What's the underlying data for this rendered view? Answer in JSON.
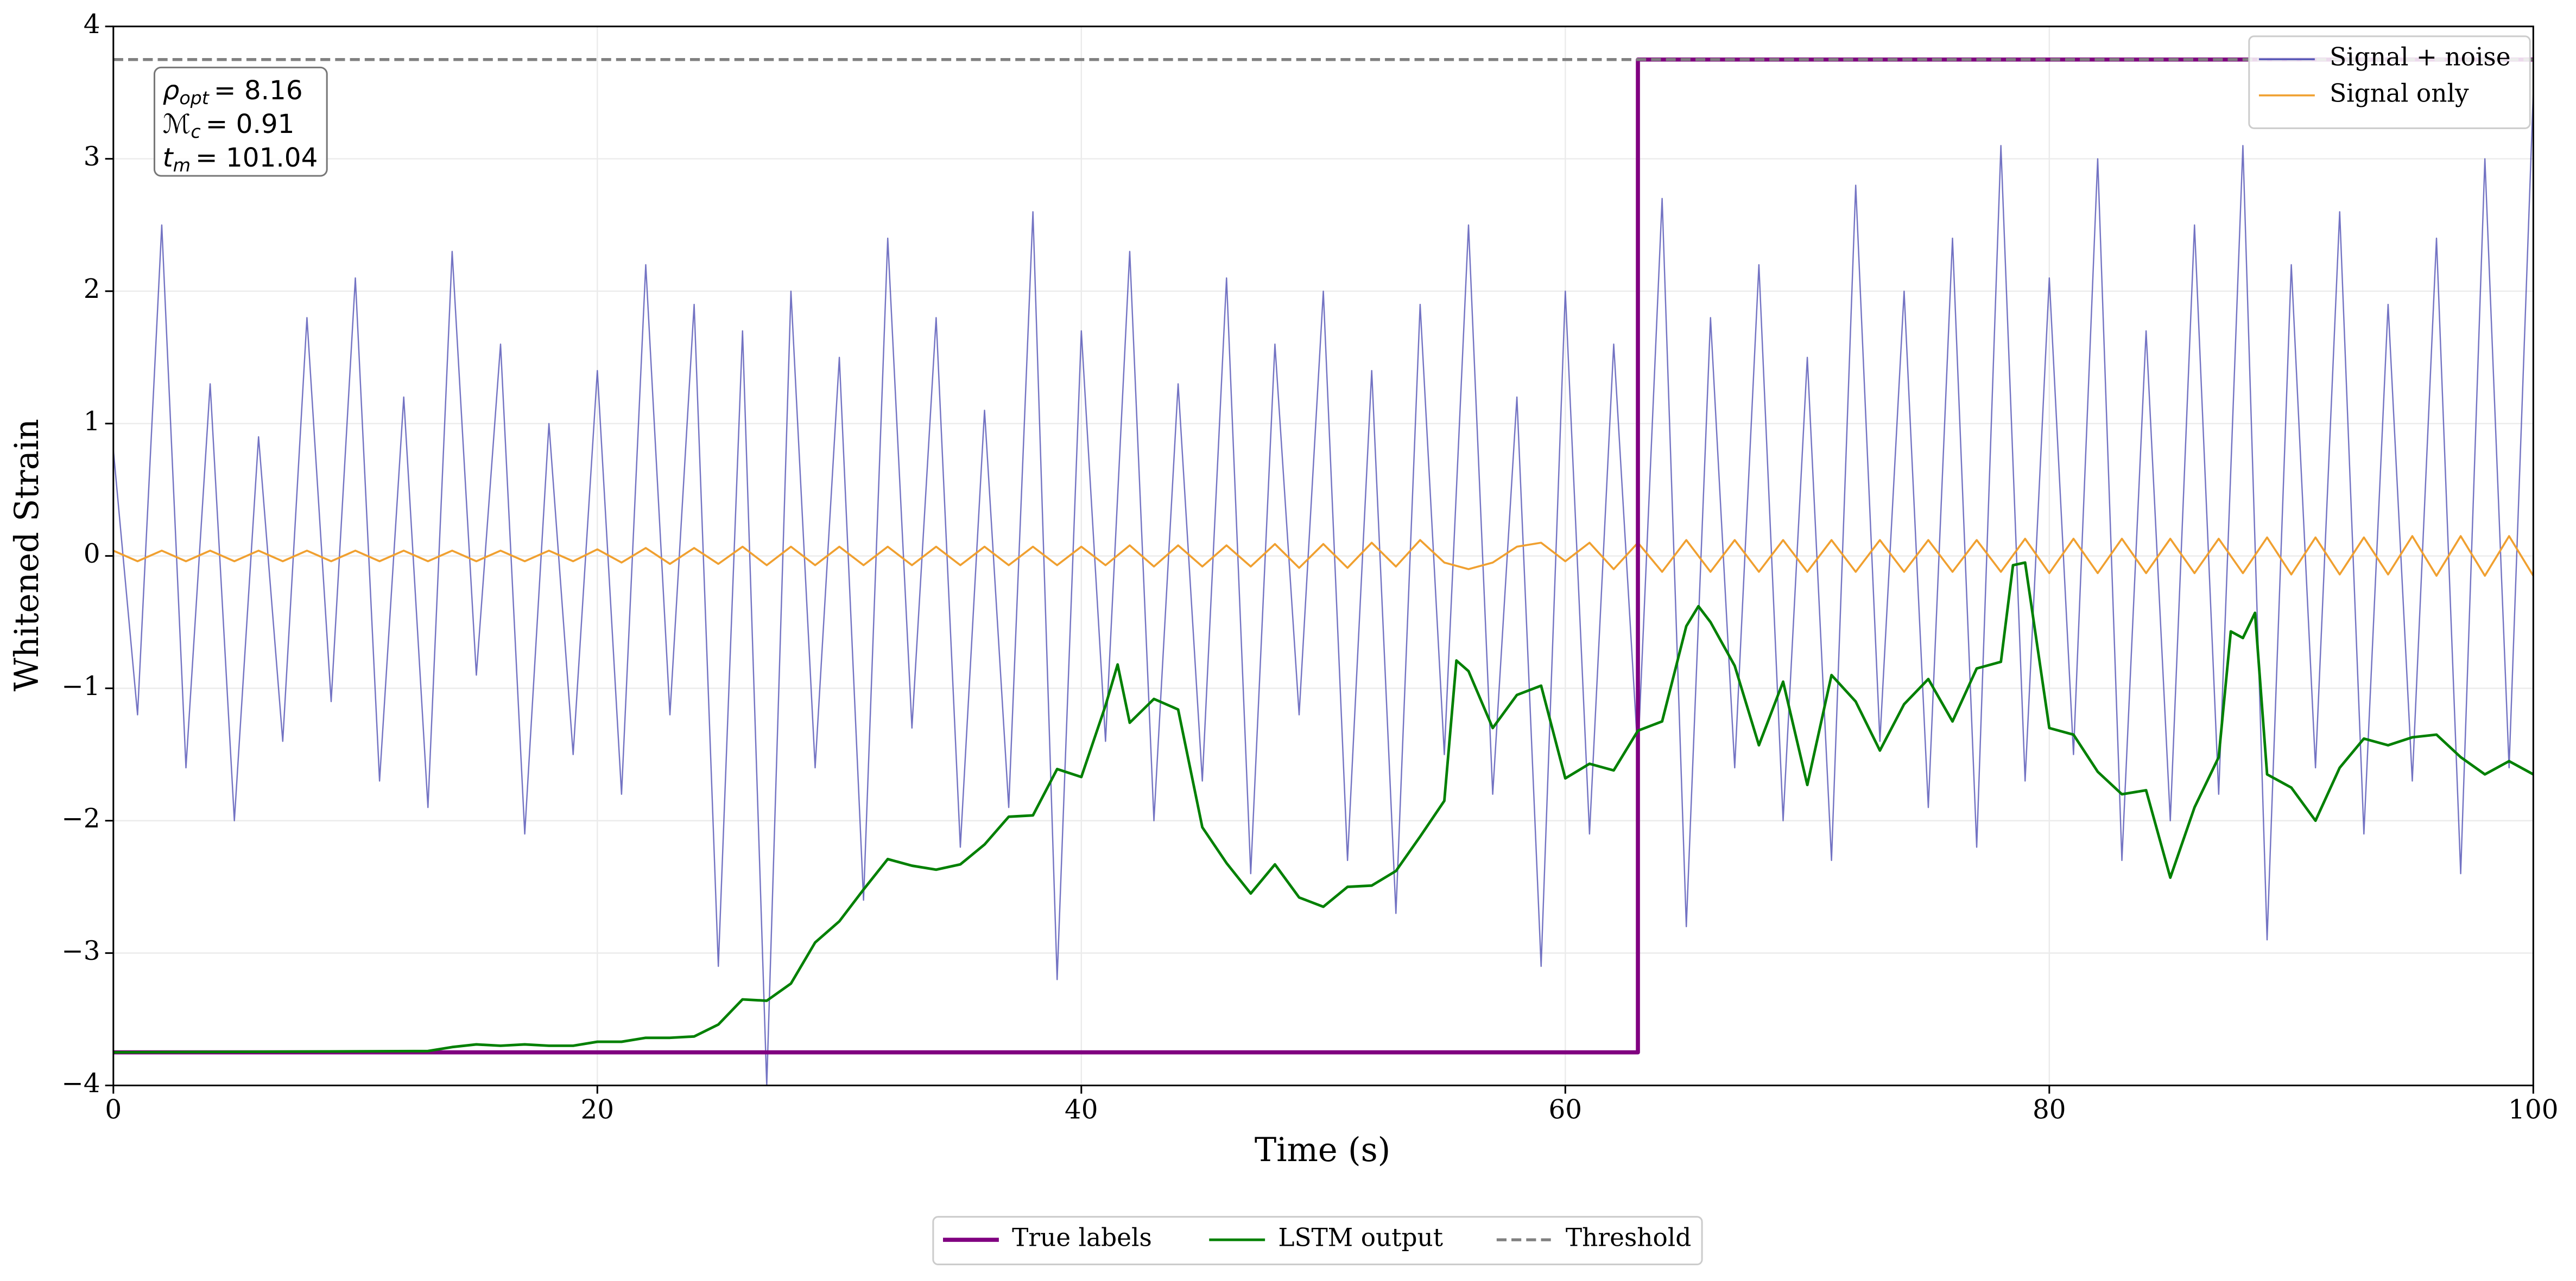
{
  "chart_data": {
    "type": "line",
    "xlabel": "Time (s)",
    "ylabel": "Whitened Strain",
    "xlim": [
      0,
      100
    ],
    "ylim": [
      -4,
      4
    ],
    "xticks": [
      0,
      20,
      40,
      60,
      80,
      100
    ],
    "yticks": [
      -4,
      -3,
      -2,
      -1,
      0,
      1,
      2,
      3,
      4
    ],
    "grid": true,
    "annotations": [
      {
        "symbol": "ρ",
        "sub": "opt",
        "text": "= 8.16"
      },
      {
        "symbol": "ℳ",
        "sub": "c",
        "text": "= 0.91"
      },
      {
        "symbol": "t",
        "sub": "m",
        "text": "= 101.04"
      }
    ],
    "x": [
      0,
      1,
      2,
      3,
      4,
      5,
      6,
      7,
      8,
      9,
      10,
      11,
      12,
      13,
      14,
      15,
      16,
      17,
      18,
      19,
      20,
      21,
      22,
      23,
      24,
      25,
      26,
      27,
      28,
      29,
      30,
      31,
      32,
      33,
      34,
      35,
      36,
      37,
      38,
      39,
      40,
      41,
      42,
      43,
      44,
      45,
      46,
      47,
      48,
      49,
      50,
      51,
      52,
      53,
      54,
      55,
      56,
      57,
      58,
      59,
      60,
      61,
      62,
      63,
      64,
      65,
      66,
      67,
      68,
      69,
      70,
      71,
      72,
      73,
      74,
      75,
      76,
      77,
      78,
      79,
      80,
      81,
      82,
      83,
      84,
      85,
      86,
      87,
      88,
      89,
      90,
      91,
      92,
      93,
      94,
      95,
      96,
      97,
      98,
      99,
      100
    ],
    "series": [
      {
        "name": "Signal + noise",
        "color": "#5a5ab8",
        "width": 0.8,
        "legend": "upper right",
        "values": [
          0.8,
          -1.2,
          2.5,
          -1.6,
          1.3,
          -2.0,
          0.9,
          -1.4,
          1.8,
          -1.1,
          2.1,
          -1.7,
          1.2,
          -1.9,
          2.3,
          -0.9,
          1.6,
          -2.1,
          1.0,
          -1.5,
          1.4,
          -1.8,
          2.2,
          -1.2,
          1.9,
          -3.1,
          1.7,
          -4.0,
          2.0,
          -1.6,
          1.5,
          -2.6,
          2.4,
          -1.3,
          1.8,
          -2.2,
          1.1,
          -1.9,
          2.6,
          -3.2,
          1.7,
          -1.4,
          2.3,
          -2.0,
          1.3,
          -1.7,
          2.1,
          -2.4,
          1.6,
          -1.2,
          2.0,
          -2.3,
          1.4,
          -2.7,
          1.9,
          -1.5,
          2.5,
          -1.8,
          1.2,
          -3.1,
          2.0,
          -2.1,
          1.6,
          -1.5,
          2.7,
          -2.8,
          1.8,
          -1.6,
          2.2,
          -2.0,
          1.5,
          -2.3,
          2.8,
          -1.4,
          2.0,
          -1.9,
          2.4,
          -2.2,
          3.1,
          -1.7,
          2.1,
          -1.5,
          3.0,
          -2.3,
          1.7,
          -2.0,
          2.5,
          -1.8,
          3.1,
          -2.9,
          2.2,
          -1.6,
          2.6,
          -2.1,
          1.9,
          -1.7,
          2.4,
          -2.4,
          3.0,
          -1.6,
          3.5
        ]
      },
      {
        "name": "Signal only",
        "color": "#f0a030",
        "width": 1.2,
        "legend": "upper right",
        "values": [
          0.04,
          -0.04,
          0.04,
          -0.04,
          0.04,
          -0.04,
          0.04,
          -0.04,
          0.04,
          -0.04,
          0.04,
          -0.04,
          0.04,
          -0.04,
          0.04,
          -0.04,
          0.04,
          -0.04,
          0.04,
          -0.04,
          0.05,
          -0.05,
          0.06,
          -0.06,
          0.06,
          -0.06,
          0.07,
          -0.07,
          0.07,
          -0.07,
          0.07,
          -0.07,
          0.07,
          -0.07,
          0.07,
          -0.07,
          0.07,
          -0.07,
          0.07,
          -0.07,
          0.07,
          -0.07,
          0.08,
          -0.08,
          0.08,
          -0.08,
          0.08,
          -0.08,
          0.09,
          -0.09,
          0.09,
          -0.09,
          0.1,
          -0.08,
          0.12,
          -0.05,
          -0.1,
          -0.05,
          0.07,
          0.1,
          -0.04,
          0.1,
          -0.1,
          0.1,
          -0.12,
          0.12,
          -0.12,
          0.12,
          -0.12,
          0.12,
          -0.12,
          0.12,
          -0.12,
          0.12,
          -0.12,
          0.12,
          -0.12,
          0.12,
          -0.12,
          0.13,
          -0.13,
          0.13,
          -0.13,
          0.13,
          -0.13,
          0.13,
          -0.13,
          0.13,
          -0.13,
          0.14,
          -0.14,
          0.14,
          -0.14,
          0.14,
          -0.14,
          0.15,
          -0.15,
          0.15,
          -0.15,
          0.15,
          -0.15
        ]
      },
      {
        "name": "True labels",
        "color": "#800080",
        "width": 2.5,
        "legend": "lower center",
        "x": [
          0,
          63,
          63,
          100
        ],
        "values": [
          -3.75,
          -3.75,
          3.75,
          3.75
        ]
      },
      {
        "name": "LSTM output",
        "color": "#008000",
        "width": 1.6,
        "legend": "lower center",
        "x": [
          0,
          13,
          14,
          15,
          16,
          17,
          18,
          19,
          20,
          21,
          22,
          23,
          24,
          25,
          26,
          27,
          28,
          29,
          30,
          31,
          32,
          33,
          34,
          35,
          36,
          37,
          38,
          39,
          40,
          41,
          41.5,
          42,
          43,
          44,
          45,
          46,
          47,
          48,
          49,
          50,
          51,
          52,
          53,
          54,
          55,
          55.5,
          56,
          57,
          58,
          59,
          60,
          61,
          62,
          63,
          64,
          65,
          65.5,
          66,
          67,
          68,
          69,
          70,
          71,
          72,
          73,
          74,
          75,
          76,
          77,
          78,
          78.5,
          79,
          80,
          81,
          82,
          83,
          84,
          85,
          86,
          87,
          87.5,
          88,
          88.5,
          89,
          90,
          91,
          92,
          93,
          94,
          95,
          96,
          97,
          98,
          99,
          100
        ],
        "values": [
          -3.75,
          -3.74,
          -3.71,
          -3.69,
          -3.7,
          -3.69,
          -3.7,
          -3.7,
          -3.67,
          -3.67,
          -3.64,
          -3.64,
          -3.63,
          -3.54,
          -3.35,
          -3.36,
          -3.23,
          -2.92,
          -2.76,
          -2.52,
          -2.29,
          -2.34,
          -2.37,
          -2.33,
          -2.18,
          -1.97,
          -1.96,
          -1.61,
          -1.67,
          -1.13,
          -0.82,
          -1.26,
          -1.08,
          -1.16,
          -2.05,
          -2.32,
          -2.55,
          -2.33,
          -2.58,
          -2.65,
          -2.5,
          -2.49,
          -2.38,
          -2.12,
          -1.85,
          -0.79,
          -0.87,
          -1.3,
          -1.05,
          -0.98,
          -1.68,
          -1.57,
          -1.62,
          -1.32,
          -1.25,
          -0.53,
          -0.38,
          -0.5,
          -0.83,
          -1.43,
          -0.95,
          -1.73,
          -0.9,
          -1.1,
          -1.47,
          -1.12,
          -0.93,
          -1.25,
          -0.85,
          -0.8,
          -0.07,
          -0.05,
          -1.3,
          -1.35,
          -1.63,
          -1.8,
          -1.77,
          -2.43,
          -1.9,
          -1.52,
          -0.57,
          -0.62,
          -0.43,
          -1.65,
          -1.75,
          -2.0,
          -1.6,
          -1.38,
          -1.43,
          -1.37,
          -1.35,
          -1.52,
          -1.65,
          -1.55,
          -1.65
        ]
      },
      {
        "name": "Threshold",
        "color": "#808080",
        "width": 1.8,
        "dashed": true,
        "legend": "lower center",
        "x": [
          0,
          100
        ],
        "values": [
          3.75,
          3.75
        ]
      }
    ]
  }
}
